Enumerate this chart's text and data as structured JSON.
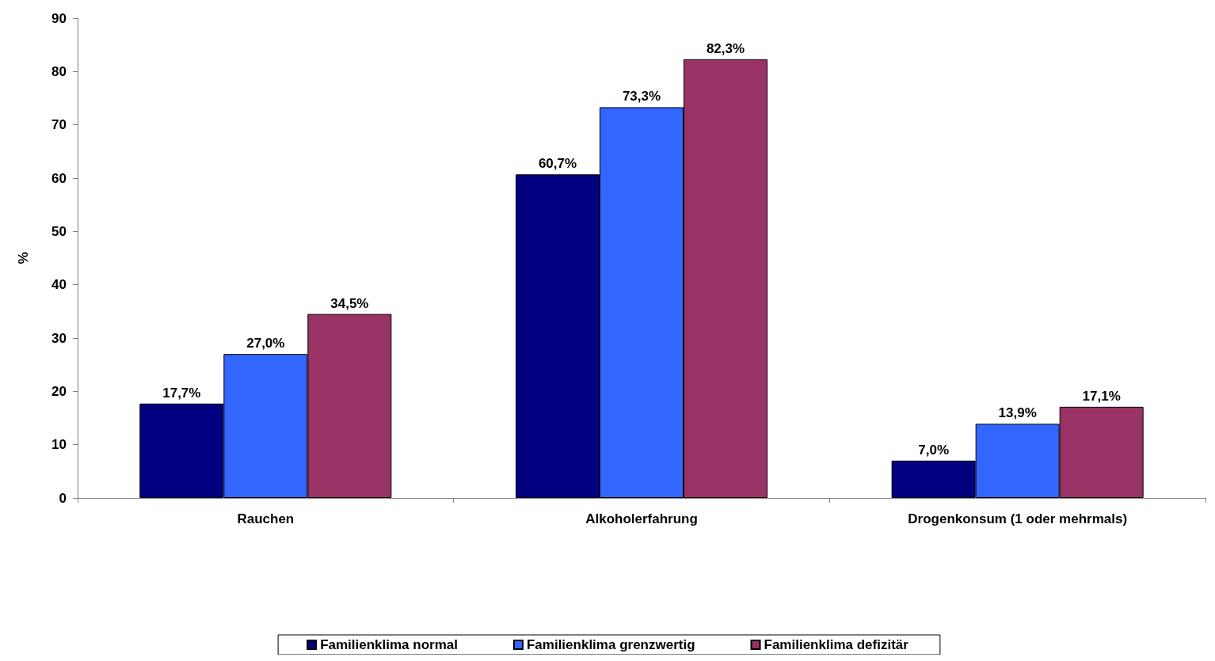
{
  "chart_data": {
    "type": "bar",
    "ylabel": "%",
    "categories": [
      "Rauchen",
      "Alkoholerfahrung",
      "Drogenkonsum (1 oder mehrmals)"
    ],
    "series": [
      {
        "name": "Familienklima normal",
        "color": "#000080",
        "values": [
          17.7,
          60.7,
          7.0
        ],
        "value_labels": [
          "17,7%",
          "60,7%",
          "7,0%"
        ]
      },
      {
        "name": "Familienklima grenzwertig",
        "color": "#3366ff",
        "values": [
          27.0,
          73.3,
          13.9
        ],
        "value_labels": [
          "27,0%",
          "73,3%",
          "13,9%"
        ]
      },
      {
        "name": "Familienklima defizitär",
        "color": "#993366",
        "values": [
          34.5,
          82.3,
          17.1
        ],
        "value_labels": [
          "34,5%",
          "82,3%",
          "17,1%"
        ]
      }
    ],
    "ylim": [
      0,
      90
    ],
    "yticks": [
      0,
      10,
      20,
      30,
      40,
      50,
      60,
      70,
      80,
      90
    ],
    "grid": false,
    "legend": "bottom"
  }
}
